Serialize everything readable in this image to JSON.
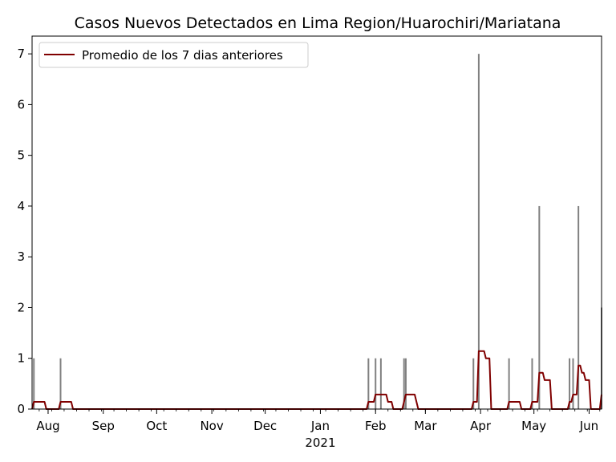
{
  "chart_data": {
    "type": "bar",
    "title": "Casos Nuevos Detectados en Lima Region/Huarochiri/Mariatana",
    "xlabel": "",
    "ylabel": "",
    "x_range": [
      "2020-07-23",
      "2021-06-08"
    ],
    "ylim": [
      0,
      7.35
    ],
    "y_ticks": [
      0,
      1,
      2,
      3,
      4,
      5,
      6,
      7
    ],
    "x_ticks": [
      {
        "date": "2020-08-01",
        "label": "Aug"
      },
      {
        "date": "2020-09-01",
        "label": "Sep"
      },
      {
        "date": "2020-10-01",
        "label": "Oct"
      },
      {
        "date": "2020-11-01",
        "label": "Nov"
      },
      {
        "date": "2020-12-01",
        "label": "Dec"
      },
      {
        "date": "2021-01-01",
        "label": "Jan"
      },
      {
        "date": "2021-02-01",
        "label": "Feb"
      },
      {
        "date": "2021-03-01",
        "label": "Mar"
      },
      {
        "date": "2021-04-01",
        "label": "Apr"
      },
      {
        "date": "2021-05-01",
        "label": "May"
      },
      {
        "date": "2021-06-01",
        "label": "Jun"
      }
    ],
    "year_label": "2021",
    "grid": false,
    "legend": {
      "position": "top-left",
      "entries": [
        "Promedio de los 7 dias anteriores"
      ]
    },
    "colors": {
      "bars": "#808080",
      "average_line": "#800000"
    },
    "daily_cases": [
      {
        "date": "2020-07-24",
        "value": 1
      },
      {
        "date": "2020-08-08",
        "value": 1
      },
      {
        "date": "2021-01-28",
        "value": 1
      },
      {
        "date": "2021-02-01",
        "value": 1
      },
      {
        "date": "2021-02-04",
        "value": 1
      },
      {
        "date": "2021-02-17",
        "value": 1
      },
      {
        "date": "2021-02-18",
        "value": 1
      },
      {
        "date": "2021-03-28",
        "value": 1
      },
      {
        "date": "2021-03-31",
        "value": 7
      },
      {
        "date": "2021-04-17",
        "value": 1
      },
      {
        "date": "2021-04-30",
        "value": 1
      },
      {
        "date": "2021-05-04",
        "value": 4
      },
      {
        "date": "2021-05-21",
        "value": 1
      },
      {
        "date": "2021-05-23",
        "value": 1
      },
      {
        "date": "2021-05-26",
        "value": 4
      },
      {
        "date": "2021-06-08",
        "value": 2
      }
    ],
    "series": [
      {
        "name": "Promedio de los 7 dias anteriores",
        "type": "line",
        "window_days": 7
      }
    ]
  }
}
